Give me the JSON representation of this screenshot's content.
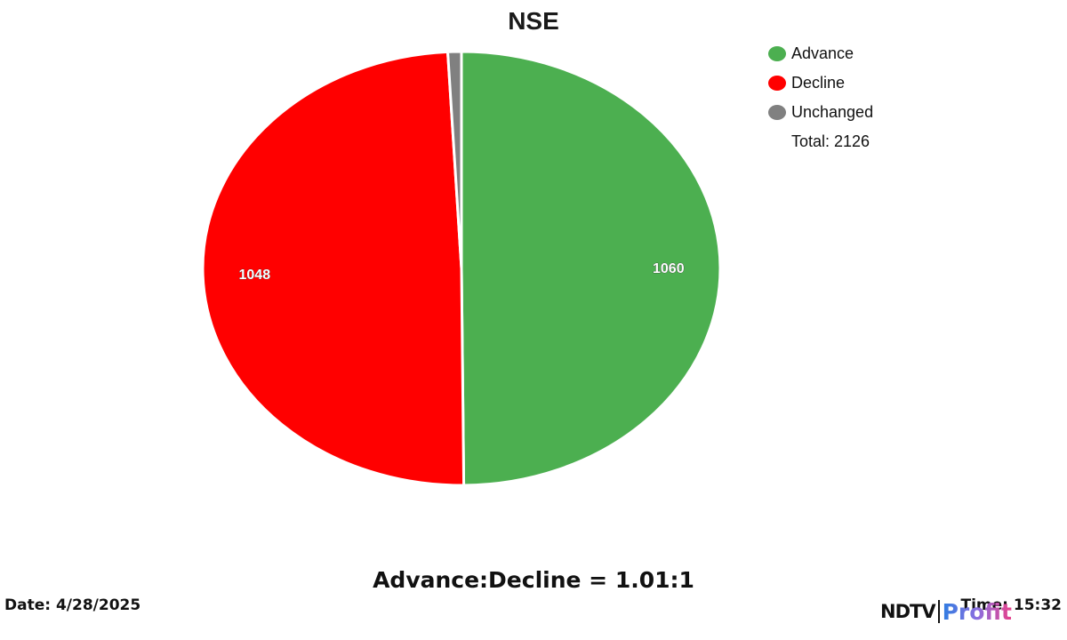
{
  "chart_data": {
    "type": "pie",
    "title": "NSE",
    "categories": [
      "Advance",
      "Decline",
      "Unchanged"
    ],
    "values": [
      1060,
      1048,
      18
    ],
    "colors": [
      "#4caf50",
      "#ff0000",
      "#808080"
    ],
    "data_labels": [
      "1060",
      "1048",
      ""
    ],
    "legend_position": "right",
    "total": 2126
  },
  "legend": {
    "items": [
      {
        "label": "Advance",
        "color": "#4caf50"
      },
      {
        "label": "Decline",
        "color": "#ff0000"
      },
      {
        "label": "Unchanged",
        "color": "#808080"
      }
    ],
    "total_text": "Total: 2126"
  },
  "footer": {
    "ratio": "Advance:Decline = 1.01:1",
    "date": "Date: 4/28/2025",
    "time": "Time: 15:32"
  },
  "branding": {
    "ndtv": "NDTV",
    "profit": "Profit"
  }
}
